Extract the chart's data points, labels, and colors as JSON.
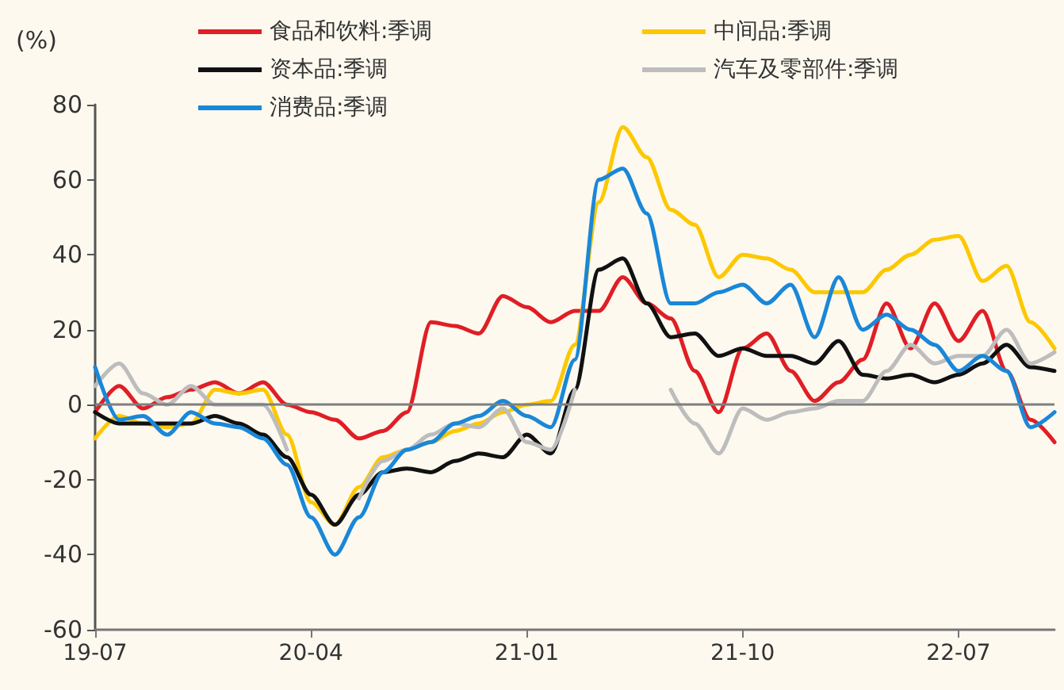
{
  "chart_data": {
    "type": "line",
    "ylabel": "(%)",
    "categories": [
      "19-07",
      null,
      null,
      null,
      null,
      null,
      null,
      null,
      null,
      "20-04",
      null,
      null,
      null,
      null,
      null,
      null,
      null,
      null,
      "21-01",
      null,
      null,
      null,
      null,
      null,
      null,
      null,
      null,
      "21-10",
      null,
      null,
      null,
      null,
      null,
      null,
      null,
      null,
      "22-07",
      null,
      null,
      null,
      null
    ],
    "series": [
      {
        "name": "食品和饮料:季调",
        "color": "#e01e25",
        "values": [
          -2,
          5,
          -1,
          2,
          4,
          6,
          3,
          6,
          0,
          -2,
          -4,
          -9,
          -7,
          -2,
          22,
          21,
          19,
          29,
          26,
          22,
          25,
          25,
          34,
          27,
          23,
          9,
          -2,
          15,
          19,
          9,
          1,
          6,
          12,
          27,
          15,
          27,
          17,
          25,
          9,
          -4,
          -10
        ]
      },
      {
        "name": "中间品:季调",
        "color": "#fcc800",
        "values": [
          -9,
          -3,
          -5,
          -6,
          -5,
          4,
          3,
          4,
          -8,
          -26,
          -32,
          -22,
          -14,
          -12,
          -10,
          -7,
          -5,
          -2,
          0,
          1,
          16,
          54,
          74,
          66,
          52,
          48,
          34,
          40,
          39,
          36,
          30,
          30,
          30,
          36,
          40,
          44,
          45,
          33,
          37,
          22,
          15
        ]
      },
      {
        "name": "资本品:季调",
        "color": "#111111",
        "values": [
          -2,
          -5,
          -5,
          -5,
          -5,
          -3,
          -5,
          -8,
          -14,
          -24,
          -32,
          -24,
          -18,
          -17,
          -18,
          -15,
          -13,
          -14,
          -8,
          -13,
          4,
          36,
          39,
          27,
          18,
          19,
          13,
          15,
          13,
          13,
          11,
          17,
          8,
          7,
          8,
          6,
          8,
          11,
          16,
          10,
          9
        ]
      },
      {
        "name": "汽车及零部件:季调",
        "color": "#bdbdbd",
        "values": [
          5,
          11,
          3,
          0,
          5,
          0,
          0,
          0,
          -12,
          null,
          null,
          -25,
          -15,
          -12,
          -8,
          -5,
          -6,
          -1,
          -10,
          -12,
          4,
          null,
          null,
          null,
          4,
          -5,
          -13,
          -1,
          -4,
          -2,
          -1,
          1,
          1,
          9,
          16,
          11,
          13,
          13,
          20,
          11,
          14
        ]
      },
      {
        "name": "消费品:季调",
        "color": "#1a87d8",
        "values": [
          10,
          -4,
          -3,
          -8,
          -2,
          -5,
          -6,
          -9,
          -16,
          -30,
          -40,
          -30,
          -18,
          -12,
          -10,
          -5,
          -3,
          1,
          -3,
          -6,
          12,
          60,
          63,
          51,
          27,
          27,
          30,
          32,
          27,
          32,
          18,
          34,
          20,
          24,
          20,
          16,
          9,
          13,
          9,
          -6,
          -2
        ]
      }
    ],
    "ylim": [
      -60,
      80
    ],
    "yticks": [
      -60,
      -40,
      -20,
      0,
      20,
      40,
      60,
      80
    ],
    "ref_lines": [
      {
        "axis": "y",
        "value": 0,
        "color": "#7f7f7f"
      }
    ],
    "grid": false,
    "legend": "top",
    "marker": "none",
    "line_style": "solid"
  }
}
